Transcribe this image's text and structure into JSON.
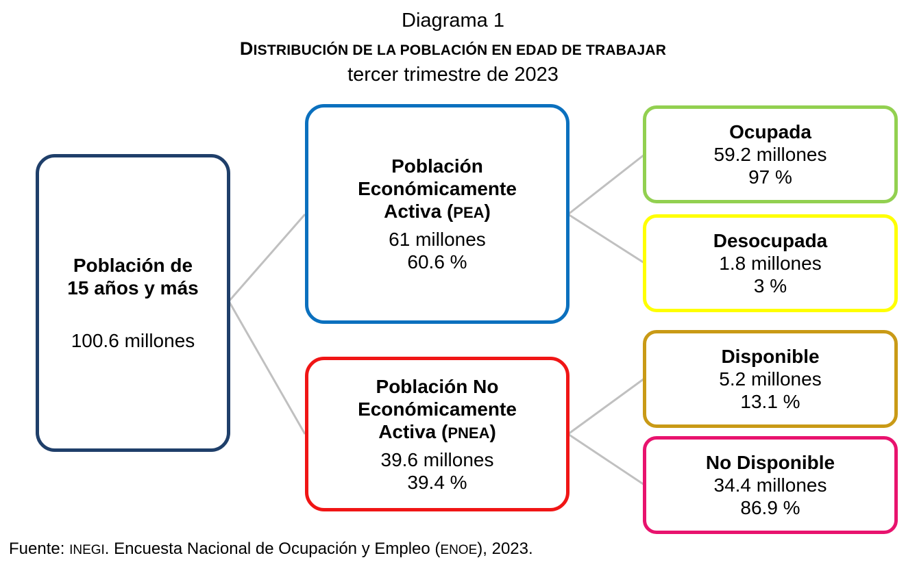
{
  "header": {
    "label": "Diagrama 1",
    "title_initial": "D",
    "title_rest": "ISTRIBUCIÓN DE LA POBLACIÓN EN EDAD DE TRABAJAR",
    "subtitle": "tercer trimestre de 2023"
  },
  "nodes": {
    "root": {
      "name_line1": "Población de",
      "name_line2": "15 años y más",
      "value": "100.6 millones"
    },
    "pea": {
      "name_line1": "Población",
      "name_line2": "Económicamente",
      "name_line3": "Activa (",
      "abbr": "PEA",
      "close": ")",
      "value": "61 millones",
      "percent": "60.6 %"
    },
    "pnea": {
      "name_line1": "Población No",
      "name_line2": "Económicamente",
      "name_line3": "Activa (",
      "abbr": "PNEA",
      "close": ")",
      "value": "39.6 millones",
      "percent": "39.4 %"
    },
    "ocupada": {
      "name": "Ocupada",
      "value": "59.2 millones",
      "percent": "97 %"
    },
    "desocupada": {
      "name": "Desocupada",
      "value": "1.8 millones",
      "percent": "3 %"
    },
    "disponible": {
      "name": "Disponible",
      "value": "5.2 millones",
      "percent": "13.1 %"
    },
    "no_disponible": {
      "name": "No Disponible",
      "value": "34.4 millones",
      "percent": "86.9 %"
    }
  },
  "footer": {
    "prefix": "Fuente: ",
    "org": "INEGI",
    "middle": ". Encuesta Nacional de Ocupación y Empleo (",
    "survey": "ENOE",
    "suffix": "), 2023."
  },
  "colors": {
    "root_border": "#1f3f6a",
    "pea_border": "#0b70be",
    "pnea_border": "#f01515",
    "ocupada_border": "#92d050",
    "desocupada_border": "#ffff00",
    "disponible_border": "#c99a16",
    "no_disponible_border": "#e8136e",
    "connector": "#c0c0c0"
  }
}
